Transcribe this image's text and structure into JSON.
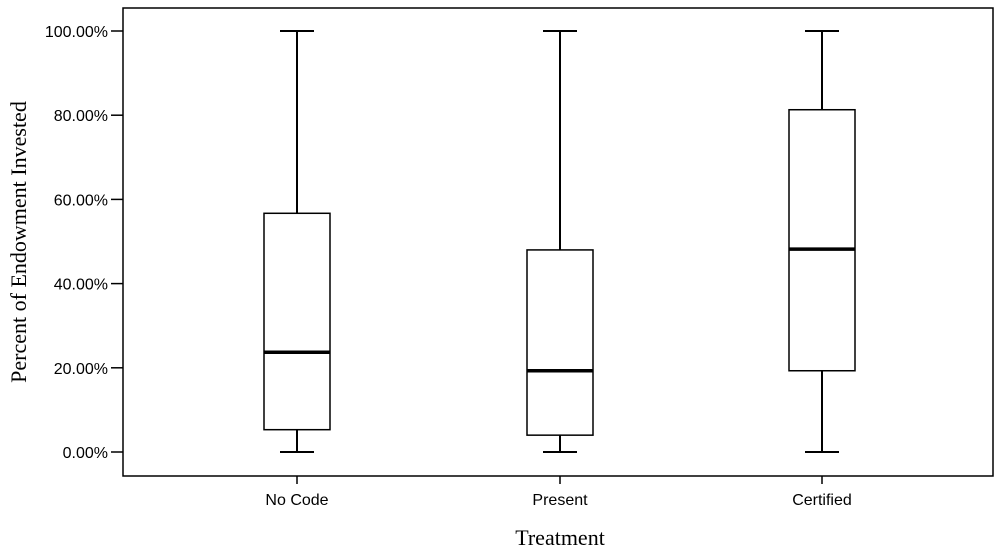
{
  "chart_data": {
    "type": "boxplot",
    "title": "",
    "xlabel": "Treatment",
    "ylabel": "Percent of Endowment Invested",
    "ylim": [
      -5,
      105
    ],
    "yticks": [
      0,
      20,
      40,
      60,
      80,
      100
    ],
    "ytick_labels": [
      "0.00%",
      "20.00%",
      "40.00%",
      "60.00%",
      "80.00%",
      "100.00%"
    ],
    "categories": [
      "No Code",
      "Present",
      "Certified"
    ],
    "boxes": [
      {
        "category": "No Code",
        "min": 0,
        "q1": 5.3,
        "median": 23.7,
        "q3": 56.7,
        "max": 100
      },
      {
        "category": "Present",
        "min": 0,
        "q1": 4.0,
        "median": 19.3,
        "q3": 48.0,
        "max": 100
      },
      {
        "category": "Certified",
        "min": 0,
        "q1": 19.3,
        "median": 48.2,
        "q3": 81.3,
        "max": 100
      }
    ],
    "grid": false,
    "legend": "none",
    "colors": {
      "box_fill": "#ffffff",
      "stroke": "#000000"
    }
  }
}
